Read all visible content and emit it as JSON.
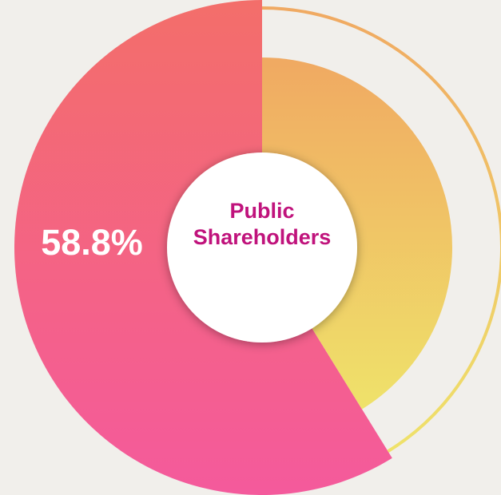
{
  "chart_data": {
    "type": "pie",
    "values": [
      58.8,
      41.2
    ],
    "value_labels": [
      "58.8%",
      null
    ],
    "colors": [
      [
        "#f36e6a",
        "#f45a9c"
      ],
      [
        "#f0a962",
        "#efe26a"
      ]
    ],
    "center_label": "Public Shareholders"
  }
}
